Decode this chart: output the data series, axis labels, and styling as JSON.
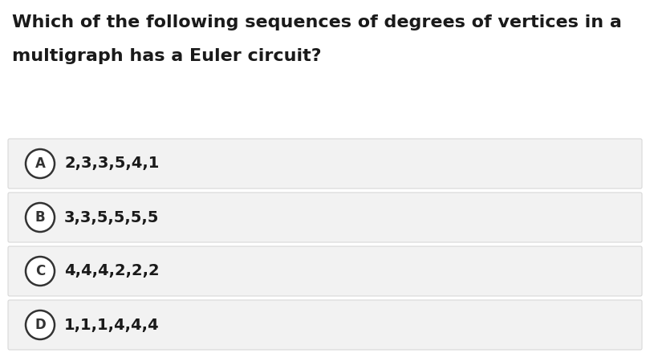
{
  "title_line1": "Which of the following sequences of degrees of vertices in a",
  "title_line2": "multigraph has a Euler circuit?",
  "options": [
    {
      "label": "A",
      "text": "2,3,3,5,4,1"
    },
    {
      "label": "B",
      "text": "3,3,5,5,5,5"
    },
    {
      "label": "C",
      "text": "4,4,4,2,2,2"
    },
    {
      "label": "D",
      "text": "1,1,1,4,4,4"
    }
  ],
  "bg_color": "#ffffff",
  "option_bg_color": "#f2f2f2",
  "option_border_color": "#d8d8d8",
  "title_color": "#1a1a1a",
  "option_text_color": "#1a1a1a",
  "label_circle_color": "#ffffff",
  "label_circle_edge_color": "#333333",
  "title_fontsize": 16,
  "option_fontsize": 14,
  "label_fontsize": 12,
  "fig_width": 8.1,
  "fig_height": 4.5,
  "dpi": 100
}
